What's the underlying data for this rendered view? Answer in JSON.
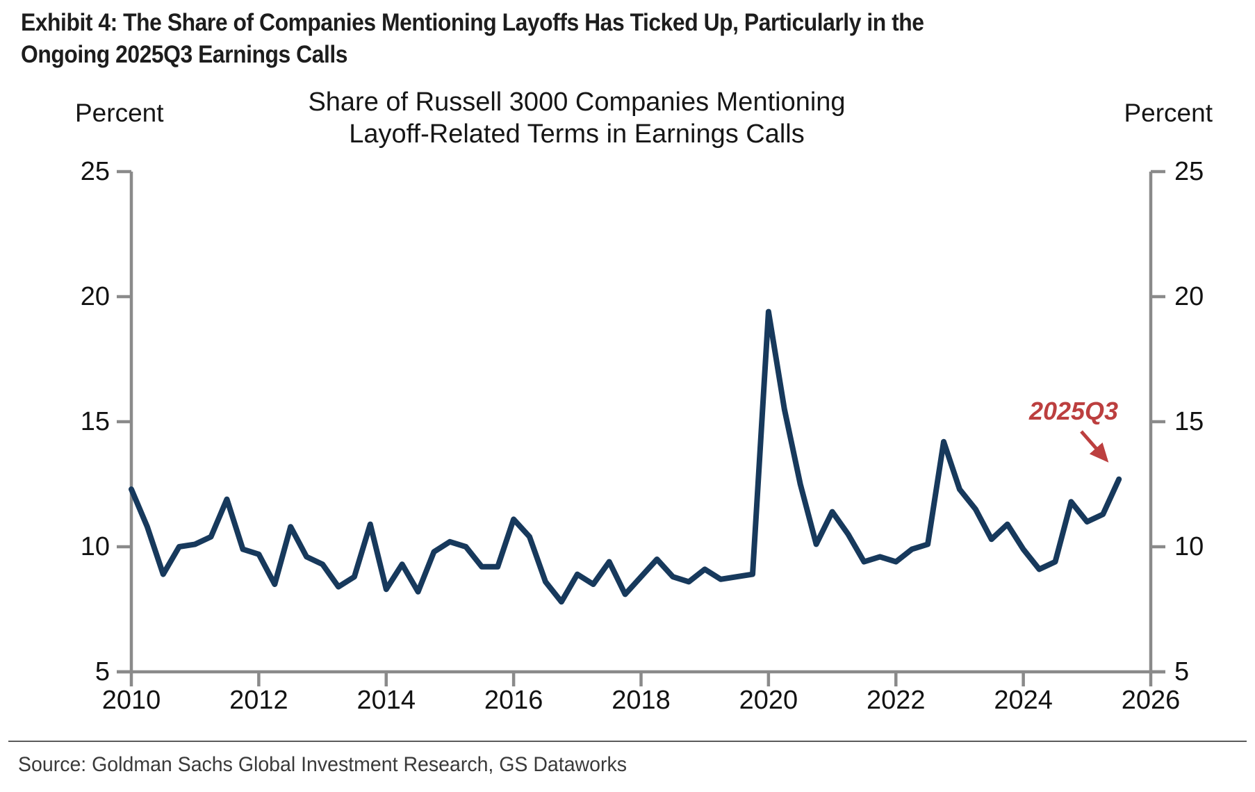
{
  "page": {
    "title_line1": "Exhibit 4: The Share of Companies Mentioning Layoffs Has Ticked Up, Particularly in the",
    "title_line2": "Ongoing 2025Q3 Earnings Calls",
    "source": "Source: Goldman Sachs Global Investment Research, GS Dataworks"
  },
  "chart_data": {
    "type": "line",
    "title_line1": "Share of Russell 3000 Companies Mentioning",
    "title_line2": "Layoff-Related Terms in Earnings Calls",
    "left_axis_label": "Percent",
    "right_axis_label": "Percent",
    "ylim": [
      5,
      25
    ],
    "xlim": [
      2010,
      2026
    ],
    "y_ticks": [
      25,
      20,
      15,
      10,
      5
    ],
    "x_ticks": [
      2010,
      2012,
      2014,
      2016,
      2018,
      2020,
      2022,
      2024,
      2026
    ],
    "grid": false,
    "legend": "none",
    "line_color": "#17395c",
    "axis_color": "#8a8a8a",
    "annotation": {
      "text": "2025Q3",
      "color": "#bc3f3f",
      "points_to_quarter": "2025Q3"
    },
    "series": [
      {
        "name": "Share of Russell 3000 companies mentioning layoff-related terms in earnings calls (percent)",
        "frequency": "quarterly",
        "quarters": [
          "2010Q1",
          "2010Q2",
          "2010Q3",
          "2010Q4",
          "2011Q1",
          "2011Q2",
          "2011Q3",
          "2011Q4",
          "2012Q1",
          "2012Q2",
          "2012Q3",
          "2012Q4",
          "2013Q1",
          "2013Q2",
          "2013Q3",
          "2013Q4",
          "2014Q1",
          "2014Q2",
          "2014Q3",
          "2014Q4",
          "2015Q1",
          "2015Q2",
          "2015Q3",
          "2015Q4",
          "2016Q1",
          "2016Q2",
          "2016Q3",
          "2016Q4",
          "2017Q1",
          "2017Q2",
          "2017Q3",
          "2017Q4",
          "2018Q1",
          "2018Q2",
          "2018Q3",
          "2018Q4",
          "2019Q1",
          "2019Q2",
          "2019Q3",
          "2019Q4",
          "2020Q1",
          "2020Q2",
          "2020Q3",
          "2020Q4",
          "2021Q1",
          "2021Q2",
          "2021Q3",
          "2021Q4",
          "2022Q1",
          "2022Q2",
          "2022Q3",
          "2022Q4",
          "2023Q1",
          "2023Q2",
          "2023Q3",
          "2023Q4",
          "2024Q1",
          "2024Q2",
          "2024Q3",
          "2024Q4",
          "2025Q1",
          "2025Q2",
          "2025Q3"
        ],
        "values": [
          12.3,
          10.8,
          8.9,
          10.0,
          10.1,
          10.4,
          11.9,
          9.9,
          9.7,
          8.5,
          10.8,
          9.6,
          9.3,
          8.4,
          8.8,
          10.9,
          8.3,
          9.3,
          8.2,
          9.8,
          10.2,
          10.0,
          9.2,
          9.2,
          11.1,
          10.4,
          8.6,
          7.8,
          8.9,
          8.5,
          9.4,
          8.1,
          8.8,
          9.5,
          8.8,
          8.6,
          9.1,
          8.7,
          8.8,
          8.9,
          19.4,
          15.5,
          12.5,
          10.1,
          11.4,
          10.5,
          9.4,
          9.6,
          9.4,
          9.9,
          10.1,
          14.2,
          12.3,
          11.5,
          10.3,
          10.9,
          9.9,
          9.1,
          9.4,
          11.8,
          11.0,
          11.3,
          12.7
        ]
      }
    ]
  }
}
